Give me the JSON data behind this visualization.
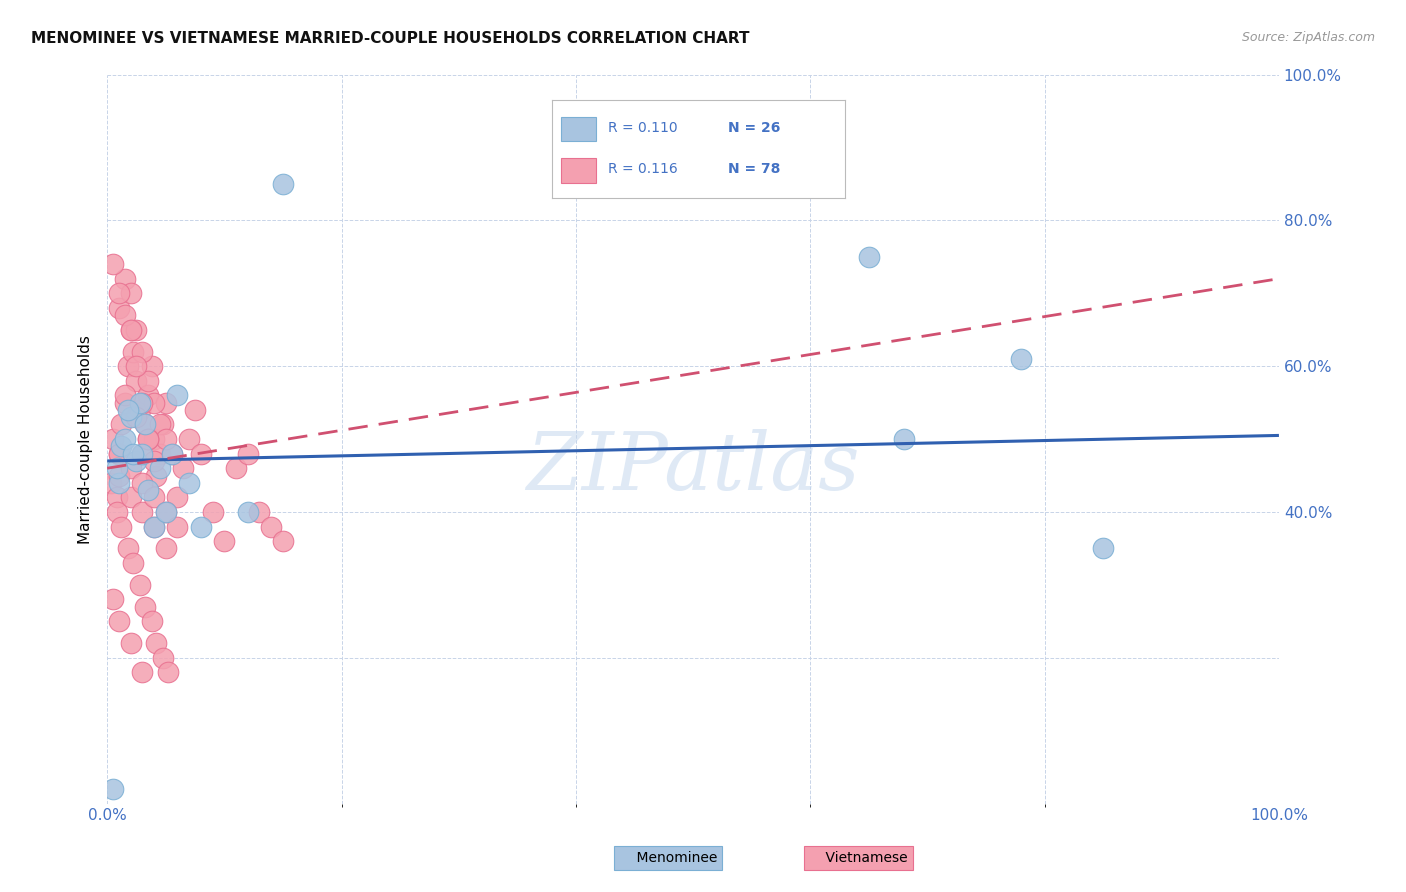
{
  "title": "MENOMINEE VS VIETNAMESE MARRIED-COUPLE HOUSEHOLDS CORRELATION CHART",
  "source": "Source: ZipAtlas.com",
  "ylabel": "Married-couple Households",
  "xlim": [
    0.0,
    100.0
  ],
  "ylim": [
    0.0,
    100.0
  ],
  "menominee_color": "#a8c4e0",
  "vietnamese_color": "#f4a0b0",
  "menominee_edge": "#7bafd4",
  "vietnamese_edge": "#e87090",
  "trend_menominee_color": "#3060b0",
  "trend_vietnamese_color": "#d05070",
  "legend_color": "#4472c4",
  "menominee_R": "0.110",
  "menominee_N": "26",
  "vietnamese_R": "0.116",
  "vietnamese_N": "78",
  "menominee_x": [
    0.5,
    1.0,
    1.2,
    1.5,
    2.0,
    2.5,
    2.8,
    3.0,
    3.5,
    4.0,
    5.0,
    6.0,
    8.0,
    12.0,
    15.0,
    0.8,
    1.8,
    2.2,
    3.2,
    4.5,
    5.5,
    7.0,
    65.0,
    68.0,
    78.0,
    85.0
  ],
  "menominee_y": [
    2.0,
    44.0,
    49.0,
    50.0,
    53.0,
    47.0,
    55.0,
    48.0,
    43.0,
    38.0,
    40.0,
    56.0,
    38.0,
    40.0,
    85.0,
    46.0,
    54.0,
    48.0,
    52.0,
    46.0,
    48.0,
    44.0,
    75.0,
    50.0,
    61.0,
    35.0
  ],
  "vietnamese_x": [
    0.3,
    0.5,
    0.8,
    1.0,
    1.2,
    1.5,
    1.8,
    2.0,
    2.2,
    2.5,
    2.8,
    3.0,
    3.2,
    3.5,
    3.8,
    4.0,
    4.2,
    4.5,
    4.8,
    5.0,
    5.5,
    6.0,
    6.5,
    7.0,
    7.5,
    8.0,
    9.0,
    10.0,
    11.0,
    12.0,
    13.0,
    14.0,
    15.0,
    1.0,
    1.5,
    2.0,
    2.5,
    3.0,
    3.5,
    4.0,
    4.5,
    5.0,
    0.5,
    1.0,
    1.5,
    2.0,
    2.5,
    3.0,
    3.5,
    4.0,
    0.8,
    1.2,
    1.8,
    2.2,
    2.8,
    3.2,
    3.8,
    4.2,
    4.8,
    5.2,
    1.0,
    2.0,
    3.0,
    4.0,
    5.0,
    1.5,
    2.5,
    3.5,
    0.5,
    1.0,
    2.0,
    3.0,
    1.0,
    2.0,
    3.0,
    4.0,
    5.0,
    6.0
  ],
  "vietnamese_y": [
    44.0,
    50.0,
    42.0,
    48.0,
    52.0,
    55.0,
    60.0,
    65.0,
    62.0,
    58.0,
    54.0,
    48.0,
    52.0,
    56.0,
    60.0,
    50.0,
    45.0,
    48.0,
    52.0,
    55.0,
    48.0,
    42.0,
    46.0,
    50.0,
    54.0,
    48.0,
    40.0,
    36.0,
    46.0,
    48.0,
    40.0,
    38.0,
    36.0,
    68.0,
    72.0,
    70.0,
    65.0,
    62.0,
    58.0,
    55.0,
    52.0,
    50.0,
    74.0,
    70.0,
    67.0,
    65.0,
    60.0,
    55.0,
    50.0,
    47.0,
    40.0,
    38.0,
    35.0,
    33.0,
    30.0,
    27.0,
    25.0,
    22.0,
    20.0,
    18.0,
    45.0,
    42.0,
    40.0,
    38.0,
    35.0,
    56.0,
    53.0,
    50.0,
    28.0,
    25.0,
    22.0,
    18.0,
    48.0,
    46.0,
    44.0,
    42.0,
    40.0,
    38.0
  ],
  "watermark_text": "ZIPatlas",
  "background_color": "#ffffff",
  "grid_color": "#c8d4e8",
  "figure_width": 14.06,
  "figure_height": 8.92,
  "dpi": 100,
  "men_trend_x0": 0.0,
  "men_trend_y0": 47.0,
  "men_trend_x1": 100.0,
  "men_trend_y1": 50.5,
  "viet_trend_x0": 0.0,
  "viet_trend_y0": 46.0,
  "viet_trend_x1": 100.0,
  "viet_trend_y1": 72.0
}
